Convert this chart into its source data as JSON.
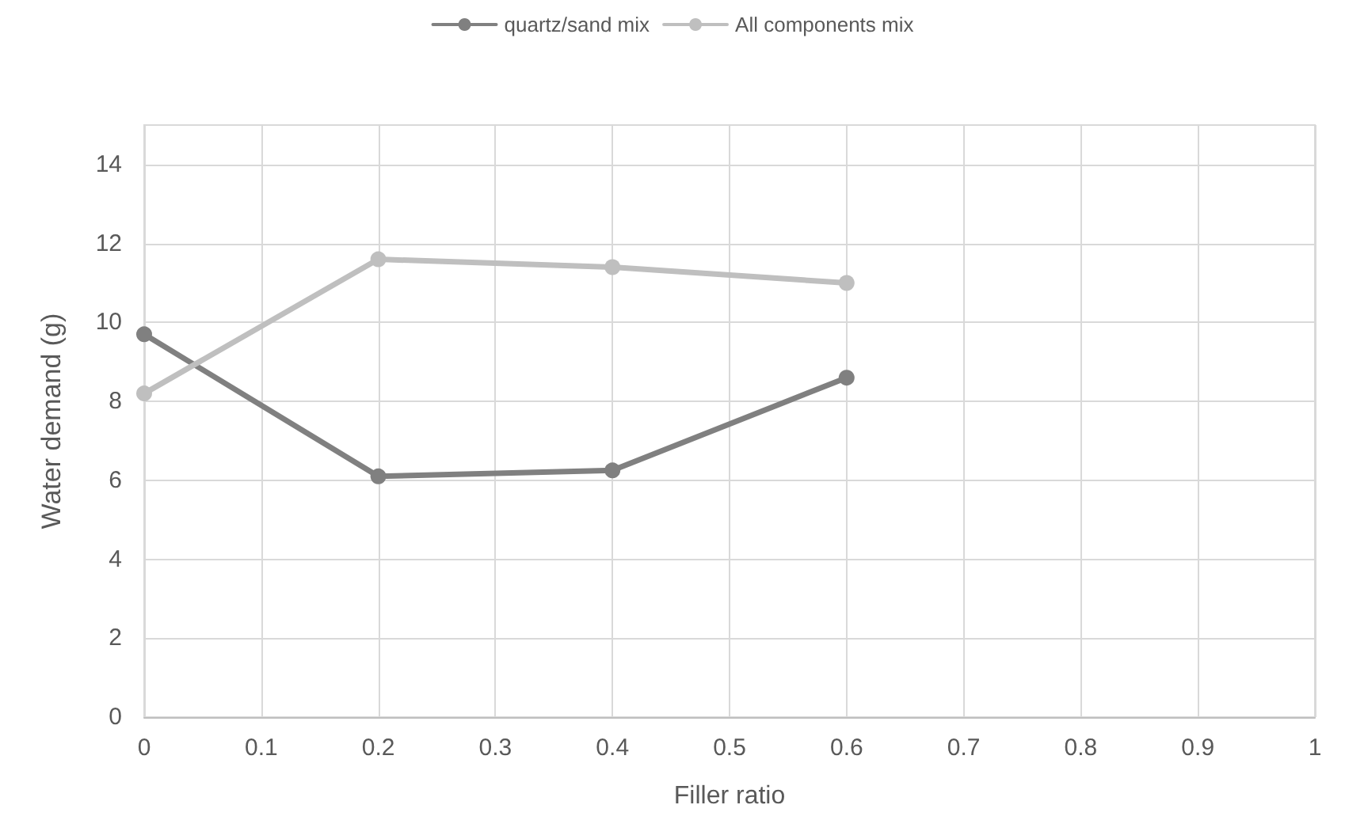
{
  "chart_data": {
    "type": "line",
    "xlabel": "Filler ratio",
    "ylabel": "Water demand (g)",
    "x": [
      0,
      0.2,
      0.4,
      0.6
    ],
    "series": [
      {
        "name": "quartz/sand mix",
        "color": "#808080",
        "values": [
          9.7,
          6.1,
          6.25,
          8.6
        ]
      },
      {
        "name": "All components mix",
        "color": "#bfbfbf",
        "values": [
          8.2,
          11.6,
          11.4,
          11.0
        ]
      }
    ],
    "xlim": [
      0,
      1
    ],
    "xticks": [
      0,
      0.1,
      0.2,
      0.3,
      0.4,
      0.5,
      0.6,
      0.7,
      0.8,
      0.9,
      1
    ],
    "ylim": [
      0,
      15
    ],
    "yticks": [
      0,
      2,
      4,
      6,
      8,
      10,
      12,
      14
    ],
    "grid": true,
    "legend": "top",
    "marker": "circle",
    "line_style": "solid"
  }
}
